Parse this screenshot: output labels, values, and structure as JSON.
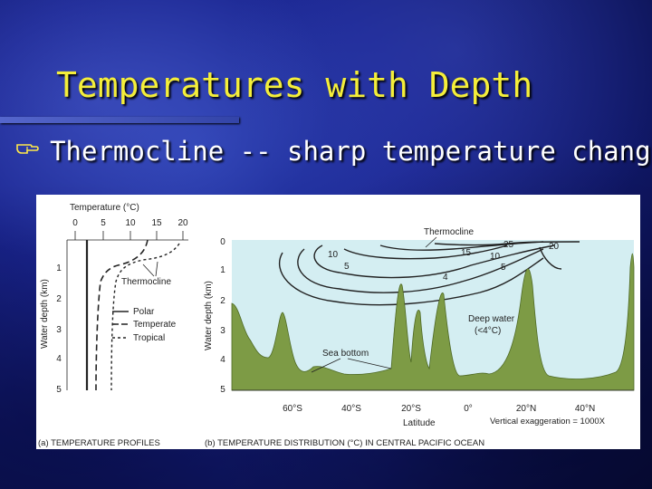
{
  "slide": {
    "title": "Temperatures with Depth",
    "bullet": "Thermocline -- sharp temperature change"
  },
  "figure_a": {
    "axis_title_top": "Temperature (°C)",
    "temp_ticks": [
      "0",
      "5",
      "10",
      "15",
      "20"
    ],
    "ylabel": "Water depth (km)",
    "depth_ticks": [
      "1",
      "2",
      "3",
      "4",
      "5"
    ],
    "thermocline_label": "Thermocline",
    "legend": [
      "Polar",
      "Temperate",
      "Tropical"
    ],
    "caption": "(a) TEMPERATURE PROFILES"
  },
  "figure_b": {
    "ylabel": "Water depth (km)",
    "depth_ticks": [
      "0",
      "1",
      "2",
      "3",
      "4",
      "5"
    ],
    "thermocline_label": "Thermocline",
    "isotherm_labels": [
      "10",
      "5",
      "15",
      "25",
      "20",
      "10",
      "5",
      "4"
    ],
    "deep_water_label_1": "Deep water",
    "deep_water_label_2": "(<4°C)",
    "sea_bottom_label": "Sea bottom",
    "lat_ticks": [
      "60°S",
      "40°S",
      "20°S",
      "0°",
      "20°N",
      "40°N"
    ],
    "xlabel": "Latitude",
    "exaggeration": "Vertical exaggeration = 1000X",
    "caption": "(b) TEMPERATURE DISTRIBUTION (°C) IN CENTRAL PACIFIC OCEAN"
  },
  "colors": {
    "title": "#f4ee3a",
    "background": "#1a2590",
    "ocean": "#d4eef2",
    "seafloor": "#7d9b45"
  }
}
